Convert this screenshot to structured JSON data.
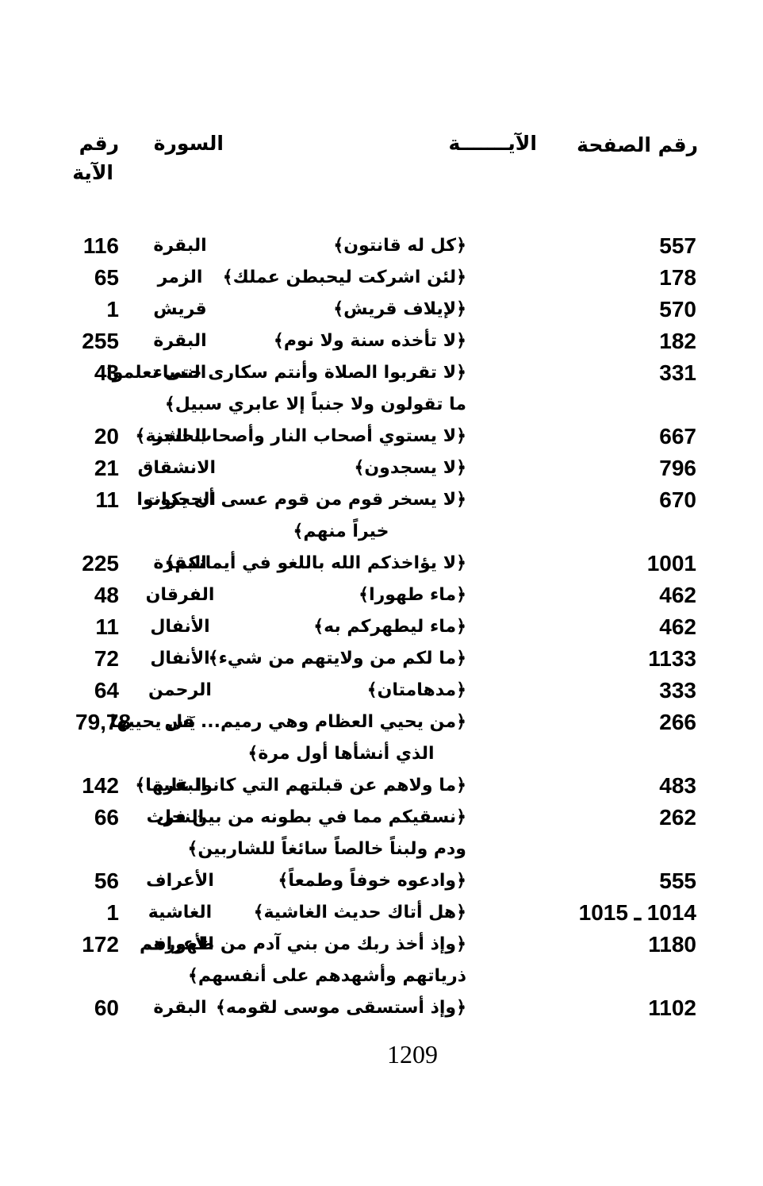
{
  "table": {
    "header": {
      "page_col": "رقم الصفحة",
      "verse_col": "الآيـــــــة",
      "surah_col": "السورة",
      "number_col_line1": "رقم",
      "number_col_line2": "الآية"
    },
    "rows": [
      {
        "page": "557",
        "verse_lines": [
          "﴿كل له قانتون﴾"
        ],
        "surah": "البقرة",
        "verse_no": "116"
      },
      {
        "page": "178",
        "verse_lines": [
          "﴿لئن اشركت ليحبطن عملك﴾"
        ],
        "surah": "الزمر",
        "verse_no": "65"
      },
      {
        "page": "570",
        "verse_lines": [
          "﴿لإيلاف قريش﴾"
        ],
        "surah": "قريش",
        "verse_no": "1"
      },
      {
        "page": "182",
        "verse_lines": [
          "﴿لا تأخذه سنة ولا نوم﴾"
        ],
        "surah": "البقرة",
        "verse_no": "255"
      },
      {
        "page": "331",
        "verse_lines": [
          "﴿لا تقربوا الصلاة وأنتم سكارى حتى تعلموا",
          "ما تقولون ولا جنباً إلا عابري سبيل﴾"
        ],
        "surah": "النساء",
        "verse_no": "43"
      },
      {
        "page": "667",
        "verse_lines": [
          "﴿لا يستوي أصحاب النار وأصحاب الجنة﴾"
        ],
        "surah": "الحشر",
        "verse_no": "20"
      },
      {
        "page": "796",
        "verse_lines": [
          "﴿لا يسجدون﴾"
        ],
        "surah": "الانشقاق",
        "verse_no": "21"
      },
      {
        "page": "670",
        "verse_lines": [
          "﴿لا يسخر قوم من قوم عسى أن يكونوا",
          "خيراً منهم﴾"
        ],
        "surah": "الحجرات",
        "verse_no": "11"
      },
      {
        "page": "1001",
        "verse_lines": [
          "﴿لا يؤاخذكم الله باللغو في أيمانكم﴾"
        ],
        "surah": "البقرة",
        "verse_no": "225"
      },
      {
        "page": "462",
        "verse_lines": [
          "﴿ماء طهورا﴾"
        ],
        "surah": "الفرقان",
        "verse_no": "48"
      },
      {
        "page": "462",
        "verse_lines": [
          "﴿ماء ليطهركم به﴾"
        ],
        "surah": "الأنفال",
        "verse_no": "11"
      },
      {
        "page": "1133",
        "verse_lines": [
          "﴿ما لكم من ولايتهم من شيء﴾"
        ],
        "surah": "الأنفال",
        "verse_no": "72"
      },
      {
        "page": "333",
        "verse_lines": [
          "﴿مدهامتان﴾"
        ],
        "surah": "الرحمن",
        "verse_no": "64"
      },
      {
        "page": "266",
        "verse_lines": [
          "﴿من يحيي العظام وهي رميم... قل يحييها",
          "الذي أنشأها أول مرة﴾"
        ],
        "surah": "يَس",
        "verse_no": "79,78"
      },
      {
        "page": "483",
        "verse_lines": [
          "﴿ما ولاهم عن قبلتهم التي كانوا عليها﴾"
        ],
        "surah": "البقرة",
        "verse_no": "142"
      },
      {
        "page": "262",
        "verse_lines": [
          "﴿نسقيكم مما في بطونه من بين فرث",
          "ودم ولبناً خالصاً سائغاً للشاربين﴾"
        ],
        "surah": "النحل",
        "verse_no": "66"
      },
      {
        "page": "555",
        "verse_lines": [
          "﴿وادعوه خوفاً وطمعاً﴾"
        ],
        "surah": "الأعراف",
        "verse_no": "56"
      },
      {
        "page": "1014 ـ 1015",
        "verse_lines": [
          "﴿هل أتاك حديث الغاشية﴾"
        ],
        "surah": "الغاشية",
        "verse_no": "1"
      },
      {
        "page": "1180",
        "verse_lines": [
          "﴿وإذ أخذ ربك من بني آدم من ظهورهم",
          "ذرياتهم وأشهدهم على أنفسهم﴾"
        ],
        "surah": "الأعراف",
        "verse_no": "172"
      },
      {
        "page": "1102",
        "verse_lines": [
          "﴿وإذ أستسقى موسى لقومه﴾"
        ],
        "surah": "البقرة",
        "verse_no": "60"
      }
    ]
  },
  "footer": {
    "page_number": "1209"
  }
}
